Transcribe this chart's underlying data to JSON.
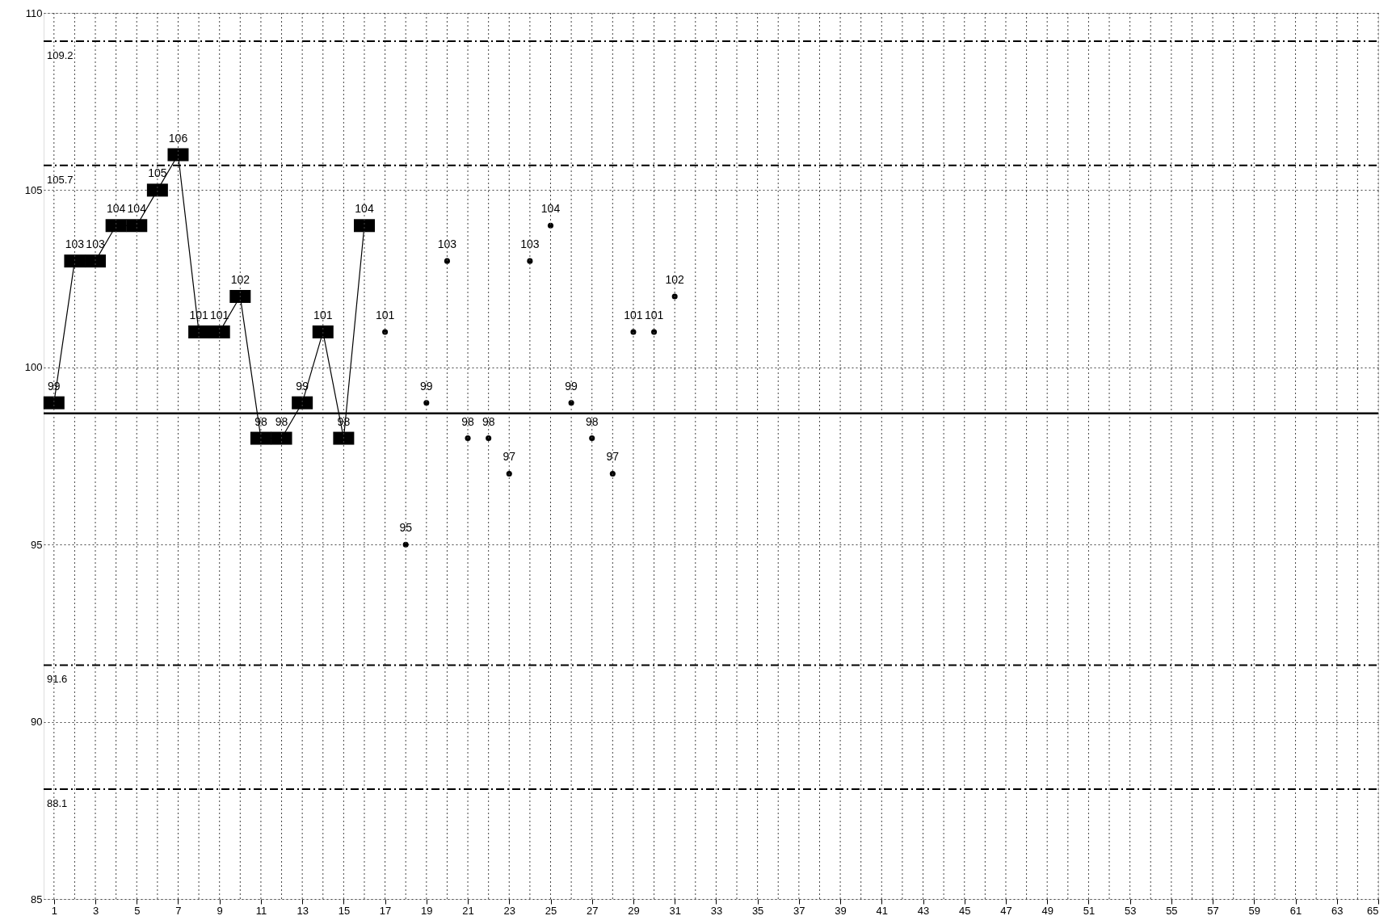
{
  "chart_data": {
    "type": "line",
    "xlim": [
      0.5,
      65
    ],
    "ylim": [
      85,
      110
    ],
    "yticks": [
      85,
      90,
      95,
      100,
      105,
      110
    ],
    "xticks": [
      1,
      {
        "value": 2,
        "label": null
      },
      3,
      {
        "value": 4,
        "label": null
      },
      5,
      {
        "value": 6,
        "label": null
      },
      7,
      {
        "value": 8,
        "label": null
      },
      9,
      {
        "value": 10,
        "label": null
      },
      11,
      {
        "value": 12,
        "label": null
      },
      13,
      {
        "value": 14,
        "label": null
      },
      15,
      {
        "value": 16,
        "label": null
      },
      17,
      {
        "value": 18,
        "label": null
      },
      19,
      {
        "value": 20,
        "label": null
      },
      21,
      {
        "value": 22,
        "label": null
      },
      23,
      {
        "value": 24,
        "label": null
      },
      25,
      {
        "value": 26,
        "label": null
      },
      27,
      {
        "value": 28,
        "label": null
      },
      29,
      {
        "value": 30,
        "label": null
      },
      31,
      {
        "value": 32,
        "label": null
      },
      33,
      {
        "value": 34,
        "label": null
      },
      35,
      {
        "value": 36,
        "label": null
      },
      37,
      {
        "value": 38,
        "label": null
      },
      39,
      {
        "value": 40,
        "label": null
      },
      41,
      {
        "value": 42,
        "label": null
      },
      43,
      {
        "value": 44,
        "label": null
      },
      45,
      {
        "value": 46,
        "label": null
      },
      47,
      {
        "value": 48,
        "label": null
      },
      49,
      {
        "value": 50,
        "label": null
      },
      51,
      {
        "value": 52,
        "label": null
      },
      53,
      {
        "value": 54,
        "label": null
      },
      55,
      {
        "value": 56,
        "label": null
      },
      57,
      {
        "value": 58,
        "label": null
      },
      59,
      {
        "value": 60,
        "label": null
      },
      61,
      {
        "value": 62,
        "label": null
      },
      63,
      {
        "value": 64,
        "label": null
      },
      65
    ],
    "grid": true,
    "data_labels": true,
    "series": [
      {
        "marker": "square",
        "color": "#000000",
        "x": [
          1,
          2,
          3,
          4,
          5,
          6,
          7,
          8,
          9,
          10,
          11,
          12,
          13,
          14,
          15,
          16
        ],
        "values": [
          99,
          103,
          103,
          104,
          104,
          105,
          106,
          101,
          101,
          102,
          98,
          98,
          99,
          101,
          98,
          104
        ]
      },
      {
        "type": "scatter",
        "marker": "circle",
        "color": "#000000",
        "x": [
          17,
          18,
          19,
          20,
          21,
          22,
          23,
          24,
          25,
          26,
          27,
          28,
          29,
          30,
          31
        ],
        "values": [
          101,
          95,
          99,
          103,
          98,
          98,
          97,
          103,
          104,
          99,
          98,
          97,
          101,
          101,
          102
        ]
      }
    ],
    "ref_lines": [
      {
        "axis": "y",
        "value": 109.2,
        "label": "109.2",
        "line_style": "dashed",
        "color": "#000000"
      },
      {
        "axis": "y",
        "value": 105.7,
        "label": "105.7",
        "line_style": "dashed",
        "color": "#000000"
      },
      {
        "axis": "y",
        "value": 98.7,
        "line_style": "solid",
        "color": "#000000"
      },
      {
        "axis": "y",
        "value": 91.6,
        "label": "91.6",
        "line_style": "dashed",
        "color": "#000000"
      },
      {
        "axis": "y",
        "value": 88.1,
        "label": "88.1",
        "line_style": "dashed",
        "color": "#000000"
      }
    ]
  }
}
